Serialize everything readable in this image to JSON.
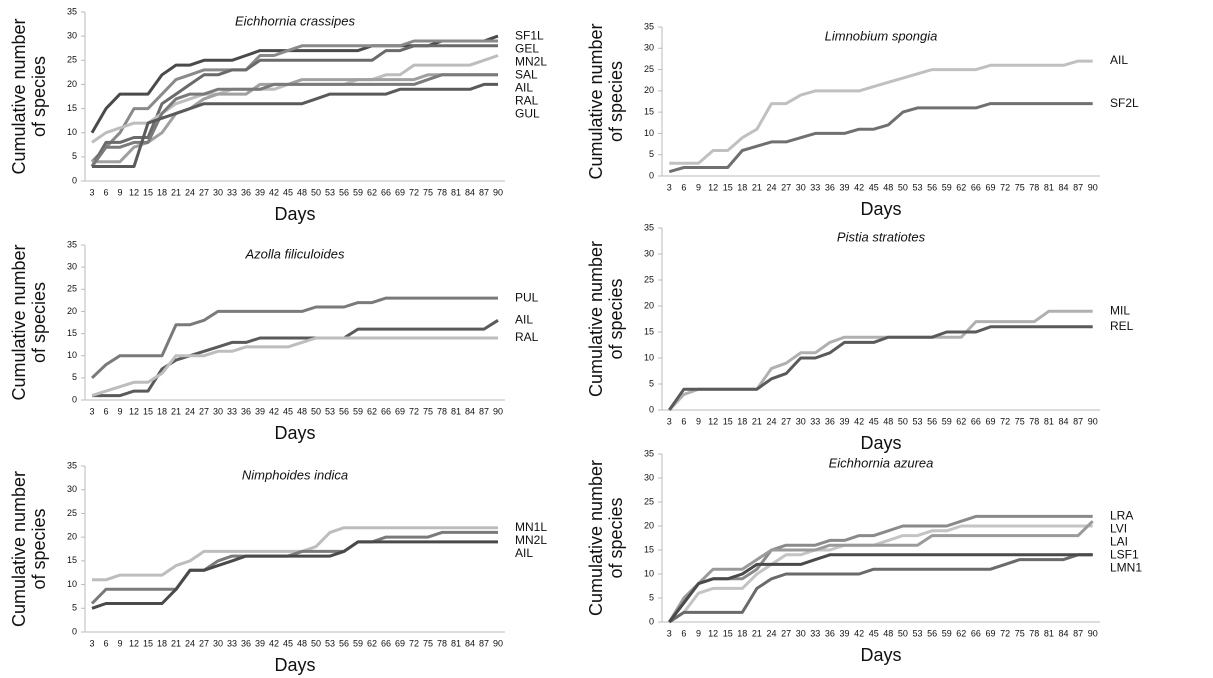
{
  "chart_data": [
    {
      "type": "line",
      "title": "Eichhornia crassipes",
      "xlabel": "Days",
      "ylabel": [
        "Cumulative number",
        "of species"
      ],
      "categories": [
        3,
        6,
        9,
        12,
        15,
        18,
        21,
        24,
        27,
        30,
        33,
        36,
        39,
        42,
        45,
        48,
        50,
        53,
        56,
        59,
        62,
        66,
        69,
        72,
        75,
        78,
        81,
        84,
        87,
        90
      ],
      "ylim": [
        0,
        35
      ],
      "yticks": [
        0,
        5,
        10,
        15,
        20,
        25,
        30,
        35
      ],
      "series": [
        {
          "name": "SF1L",
          "color": "#4a4a4a",
          "values": [
            10,
            15,
            18,
            18,
            18,
            22,
            24,
            24,
            25,
            25,
            25,
            26,
            27,
            27,
            27,
            27,
            27,
            27,
            27,
            27,
            28,
            28,
            28,
            28,
            28,
            29,
            29,
            29,
            29,
            30
          ]
        },
        {
          "name": "GEL",
          "color": "#8a8a8a",
          "values": [
            4,
            7,
            10,
            15,
            15,
            18,
            21,
            22,
            23,
            23,
            23,
            23,
            26,
            26,
            27,
            28,
            28,
            28,
            28,
            28,
            28,
            28,
            28,
            29,
            29,
            29,
            29,
            29,
            29,
            29
          ]
        },
        {
          "name": "MN2L",
          "color": "#6a6a6a",
          "values": [
            3,
            8,
            8,
            9,
            9,
            16,
            18,
            20,
            22,
            22,
            23,
            23,
            25,
            25,
            25,
            25,
            25,
            25,
            25,
            25,
            25,
            27,
            27,
            28,
            28,
            28,
            28,
            28,
            28,
            28
          ]
        },
        {
          "name": "SAL",
          "color": "#bdbdbd",
          "values": [
            8,
            10,
            11,
            12,
            12,
            14,
            16,
            17,
            18,
            18,
            19,
            19,
            19,
            19,
            20,
            20,
            20,
            20,
            20,
            21,
            21,
            22,
            22,
            24,
            24,
            24,
            24,
            24,
            25,
            26
          ]
        },
        {
          "name": "AIL",
          "color": "#a0a0a0",
          "values": [
            4,
            4,
            4,
            7,
            8,
            10,
            14,
            15,
            17,
            18,
            18,
            18,
            20,
            20,
            20,
            21,
            21,
            21,
            21,
            21,
            21,
            21,
            21,
            21,
            22,
            22,
            22,
            22,
            22,
            22
          ]
        },
        {
          "name": "RAL",
          "color": "#7a7a7a",
          "values": [
            3,
            7,
            7,
            8,
            8,
            14,
            17,
            18,
            18,
            19,
            19,
            19,
            19,
            20,
            20,
            20,
            20,
            20,
            20,
            20,
            20,
            20,
            20,
            20,
            21,
            22,
            22,
            22,
            22,
            22
          ]
        },
        {
          "name": "GUL",
          "color": "#5a5a5a",
          "values": [
            3,
            3,
            3,
            3,
            12,
            13,
            14,
            15,
            16,
            16,
            16,
            16,
            16,
            16,
            16,
            16,
            17,
            18,
            18,
            18,
            18,
            18,
            19,
            19,
            19,
            19,
            19,
            19,
            20,
            20
          ]
        }
      ]
    },
    {
      "type": "line",
      "title": "Limnobium spongia",
      "xlabel": "Days",
      "ylabel": [
        "Cumulative number",
        "of species"
      ],
      "categories": [
        3,
        6,
        9,
        12,
        15,
        18,
        21,
        24,
        27,
        30,
        33,
        36,
        39,
        42,
        45,
        48,
        50,
        53,
        56,
        59,
        62,
        66,
        69,
        72,
        75,
        78,
        81,
        84,
        87,
        90
      ],
      "ylim": [
        0,
        35
      ],
      "yticks": [
        0,
        5,
        10,
        15,
        20,
        25,
        30,
        35
      ],
      "series": [
        {
          "name": "AIL",
          "color": "#c0c0c0",
          "values": [
            3,
            3,
            3,
            6,
            6,
            9,
            11,
            17,
            17,
            19,
            20,
            20,
            20,
            20,
            21,
            22,
            23,
            24,
            25,
            25,
            25,
            25,
            26,
            26,
            26,
            26,
            26,
            26,
            27,
            27
          ]
        },
        {
          "name": "SF2L",
          "color": "#707070",
          "values": [
            1,
            2,
            2,
            2,
            2,
            6,
            7,
            8,
            8,
            9,
            10,
            10,
            10,
            11,
            11,
            12,
            15,
            16,
            16,
            16,
            16,
            16,
            17,
            17,
            17,
            17,
            17,
            17,
            17,
            17
          ]
        }
      ]
    },
    {
      "type": "line",
      "title": "Azolla filiculoides",
      "xlabel": "Days",
      "ylabel": [
        "Cumulative number",
        "of species"
      ],
      "categories": [
        3,
        6,
        9,
        12,
        15,
        18,
        21,
        24,
        27,
        30,
        33,
        36,
        39,
        42,
        45,
        48,
        50,
        53,
        56,
        59,
        62,
        66,
        69,
        72,
        75,
        78,
        81,
        84,
        87,
        90
      ],
      "ylim": [
        0,
        35
      ],
      "yticks": [
        0,
        5,
        10,
        15,
        20,
        25,
        30,
        35
      ],
      "series": [
        {
          "name": "PUL",
          "color": "#7a7a7a",
          "values": [
            5,
            8,
            10,
            10,
            10,
            10,
            17,
            17,
            18,
            20,
            20,
            20,
            20,
            20,
            20,
            20,
            21,
            21,
            21,
            22,
            22,
            23,
            23,
            23,
            23,
            23,
            23,
            23,
            23,
            23
          ]
        },
        {
          "name": "AIL",
          "color": "#5a5a5a",
          "values": [
            1,
            1,
            1,
            2,
            2,
            7,
            9,
            10,
            11,
            12,
            13,
            13,
            14,
            14,
            14,
            14,
            14,
            14,
            14,
            16,
            16,
            16,
            16,
            16,
            16,
            16,
            16,
            16,
            16,
            18
          ]
        },
        {
          "name": "RAL",
          "color": "#bdbdbd",
          "values": [
            1,
            2,
            3,
            4,
            4,
            6,
            10,
            10,
            10,
            11,
            11,
            12,
            12,
            12,
            12,
            13,
            14,
            14,
            14,
            14,
            14,
            14,
            14,
            14,
            14,
            14,
            14,
            14,
            14,
            14
          ]
        }
      ]
    },
    {
      "type": "line",
      "title": "Pistia stratiotes",
      "xlabel": "Days",
      "ylabel": [
        "Cumulative number",
        "of species"
      ],
      "categories": [
        3,
        6,
        9,
        12,
        15,
        18,
        21,
        24,
        27,
        30,
        33,
        36,
        39,
        42,
        45,
        48,
        50,
        53,
        56,
        59,
        62,
        66,
        69,
        72,
        75,
        78,
        81,
        84,
        87,
        90
      ],
      "ylim": [
        0,
        35
      ],
      "yticks": [
        0,
        5,
        10,
        15,
        20,
        25,
        30,
        35
      ],
      "series": [
        {
          "name": "MIL",
          "color": "#b0b0b0",
          "values": [
            0,
            3,
            4,
            4,
            4,
            4,
            4,
            8,
            9,
            11,
            11,
            13,
            14,
            14,
            14,
            14,
            14,
            14,
            14,
            14,
            14,
            17,
            17,
            17,
            17,
            17,
            19,
            19,
            19,
            19
          ]
        },
        {
          "name": "REL",
          "color": "#5a5a5a",
          "values": [
            0,
            4,
            4,
            4,
            4,
            4,
            4,
            6,
            7,
            10,
            10,
            11,
            13,
            13,
            13,
            14,
            14,
            14,
            14,
            15,
            15,
            15,
            16,
            16,
            16,
            16,
            16,
            16,
            16,
            16
          ]
        }
      ]
    },
    {
      "type": "line",
      "title": "Nimphoides indica",
      "xlabel": "Days",
      "ylabel": [
        "Cumulative number",
        "of species"
      ],
      "categories": [
        3,
        6,
        9,
        12,
        15,
        18,
        21,
        24,
        27,
        30,
        33,
        36,
        39,
        42,
        45,
        48,
        50,
        53,
        56,
        59,
        62,
        66,
        69,
        72,
        75,
        78,
        81,
        84,
        87,
        90
      ],
      "ylim": [
        0,
        35
      ],
      "yticks": [
        0,
        5,
        10,
        15,
        20,
        25,
        30,
        35
      ],
      "series": [
        {
          "name": "MN1L",
          "color": "#bdbdbd",
          "values": [
            11,
            11,
            12,
            12,
            12,
            12,
            14,
            15,
            17,
            17,
            17,
            17,
            17,
            17,
            17,
            17,
            18,
            21,
            22,
            22,
            22,
            22,
            22,
            22,
            22,
            22,
            22,
            22,
            22,
            22
          ]
        },
        {
          "name": "MN2L",
          "color": "#7a7a7a",
          "values": [
            6,
            9,
            9,
            9,
            9,
            9,
            9,
            13,
            13,
            15,
            16,
            16,
            16,
            16,
            16,
            17,
            17,
            17,
            17,
            19,
            19,
            20,
            20,
            20,
            20,
            21,
            21,
            21,
            21,
            21
          ]
        },
        {
          "name": "AIL",
          "color": "#4a4a4a",
          "values": [
            5,
            6,
            6,
            6,
            6,
            6,
            9,
            13,
            13,
            14,
            15,
            16,
            16,
            16,
            16,
            16,
            16,
            16,
            17,
            19,
            19,
            19,
            19,
            19,
            19,
            19,
            19,
            19,
            19,
            19
          ]
        }
      ]
    },
    {
      "type": "line",
      "title": "Eichhornia azurea",
      "xlabel": "Days",
      "ylabel": [
        "Cumulative number",
        "of species"
      ],
      "categories": [
        3,
        6,
        9,
        12,
        15,
        18,
        21,
        24,
        27,
        30,
        33,
        36,
        39,
        42,
        45,
        48,
        50,
        53,
        56,
        59,
        62,
        66,
        69,
        72,
        75,
        78,
        81,
        84,
        87,
        90
      ],
      "ylim": [
        0,
        35
      ],
      "yticks": [
        0,
        5,
        10,
        15,
        20,
        25,
        30,
        35
      ],
      "series": [
        {
          "name": "LRA",
          "color": "#8a8a8a",
          "values": [
            0,
            4,
            8,
            9,
            9,
            9,
            11,
            15,
            16,
            16,
            16,
            17,
            17,
            18,
            18,
            19,
            20,
            20,
            20,
            20,
            21,
            22,
            22,
            22,
            22,
            22,
            22,
            22,
            22,
            22
          ]
        },
        {
          "name": "LVI",
          "color": "#c4c4c4",
          "values": [
            0,
            2,
            6,
            7,
            7,
            7,
            10,
            12,
            14,
            14,
            15,
            15,
            16,
            16,
            16,
            17,
            18,
            18,
            19,
            19,
            20,
            20,
            20,
            20,
            20,
            20,
            20,
            20,
            20,
            20
          ]
        },
        {
          "name": "LAI",
          "color": "#9a9a9a",
          "values": [
            0,
            5,
            8,
            11,
            11,
            11,
            13,
            15,
            15,
            15,
            15,
            16,
            16,
            16,
            16,
            16,
            16,
            16,
            18,
            18,
            18,
            18,
            18,
            18,
            18,
            18,
            18,
            18,
            18,
            21
          ]
        },
        {
          "name": "LSF1",
          "color": "#6a6a6a",
          "values": [
            0,
            2,
            2,
            2,
            2,
            2,
            7,
            9,
            10,
            10,
            10,
            10,
            10,
            10,
            11,
            11,
            11,
            11,
            11,
            11,
            11,
            11,
            11,
            12,
            13,
            13,
            13,
            13,
            14,
            14
          ]
        },
        {
          "name": "LMN1",
          "color": "#4a4a4a",
          "values": [
            0,
            4,
            8,
            9,
            9,
            10,
            12,
            12,
            12,
            12,
            13,
            14,
            14,
            14,
            14,
            14,
            14,
            14,
            14,
            14,
            14,
            14,
            14,
            14,
            14,
            14,
            14,
            14,
            14,
            14
          ]
        }
      ]
    }
  ]
}
